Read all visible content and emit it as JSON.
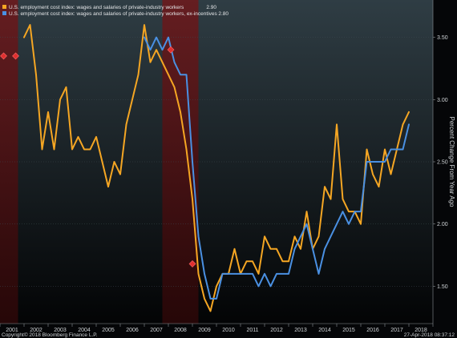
{
  "chart_data": {
    "type": "line",
    "ylabel": "Percent Change From Year Ago",
    "ylim": [
      1.2,
      3.8
    ],
    "xlim": [
      2001.0,
      2019.0
    ],
    "y_ticks": [
      "1.50",
      "2.00",
      "2.50",
      "3.00",
      "3.50"
    ],
    "x_ticks": [
      "2001",
      "2002",
      "2003",
      "2004",
      "2005",
      "2006",
      "2007",
      "2008",
      "2009",
      "2010",
      "2011",
      "2012",
      "2013",
      "2014",
      "2015",
      "2016",
      "2017",
      "2018"
    ],
    "recessions": [
      [
        2001.0,
        2001.75
      ],
      [
        2007.75,
        2009.25
      ]
    ],
    "series": [
      {
        "name": "U.S. employment cost index: wages and salaries of private-industry workers",
        "last_value": "2.90",
        "color": "#f5a623",
        "x": [
          2002.0,
          2002.25,
          2002.5,
          2002.75,
          2003.0,
          2003.25,
          2003.5,
          2003.75,
          2004.0,
          2004.25,
          2004.5,
          2004.75,
          2005.0,
          2005.25,
          2005.5,
          2005.75,
          2006.0,
          2006.25,
          2006.5,
          2006.75,
          2007.0,
          2007.25,
          2007.5,
          2007.75,
          2008.0,
          2008.25,
          2008.5,
          2008.75,
          2009.0,
          2009.25,
          2009.5,
          2009.75,
          2010.0,
          2010.25,
          2010.5,
          2010.75,
          2011.0,
          2011.25,
          2011.5,
          2011.75,
          2012.0,
          2012.25,
          2012.5,
          2012.75,
          2013.0,
          2013.25,
          2013.5,
          2013.75,
          2014.0,
          2014.25,
          2014.5,
          2014.75,
          2015.0,
          2015.25,
          2015.5,
          2015.75,
          2016.0,
          2016.25,
          2016.5,
          2016.75,
          2017.0,
          2017.25,
          2017.5,
          2017.75,
          2018.0
        ],
        "values": [
          3.5,
          3.6,
          3.2,
          2.6,
          2.9,
          2.6,
          3.0,
          3.1,
          2.6,
          2.7,
          2.6,
          2.6,
          2.7,
          2.5,
          2.3,
          2.5,
          2.4,
          2.8,
          3.0,
          3.2,
          3.6,
          3.3,
          3.4,
          3.3,
          3.2,
          3.1,
          2.9,
          2.6,
          2.2,
          1.6,
          1.4,
          1.3,
          1.5,
          1.6,
          1.6,
          1.8,
          1.6,
          1.7,
          1.7,
          1.6,
          1.9,
          1.8,
          1.8,
          1.7,
          1.7,
          1.9,
          1.8,
          2.1,
          1.8,
          1.9,
          2.3,
          2.2,
          2.8,
          2.2,
          2.1,
          2.1,
          2.0,
          2.6,
          2.4,
          2.3,
          2.6,
          2.4,
          2.6,
          2.8,
          2.9
        ]
      },
      {
        "name": "U.S. employment cost index: wages and salaries of private-industry workers, ex-incentives",
        "last_value": "2.80",
        "color": "#4a90e2",
        "x": [
          2007.0,
          2007.25,
          2007.5,
          2007.75,
          2008.0,
          2008.25,
          2008.5,
          2008.75,
          2009.0,
          2009.25,
          2009.5,
          2009.75,
          2010.0,
          2010.25,
          2010.5,
          2010.75,
          2011.0,
          2011.25,
          2011.5,
          2011.75,
          2012.0,
          2012.25,
          2012.5,
          2012.75,
          2013.0,
          2013.25,
          2013.5,
          2013.75,
          2014.0,
          2014.25,
          2014.5,
          2014.75,
          2015.0,
          2015.25,
          2015.5,
          2015.75,
          2016.0,
          2016.25,
          2016.5,
          2016.75,
          2017.0,
          2017.25,
          2017.5,
          2017.75,
          2018.0
        ],
        "values": [
          3.5,
          3.4,
          3.5,
          3.4,
          3.5,
          3.3,
          3.2,
          3.2,
          2.5,
          1.9,
          1.6,
          1.4,
          1.4,
          1.6,
          1.6,
          1.6,
          1.6,
          1.6,
          1.6,
          1.5,
          1.6,
          1.5,
          1.6,
          1.6,
          1.6,
          1.8,
          1.9,
          2.0,
          1.8,
          1.6,
          1.8,
          1.9,
          2.0,
          2.1,
          2.0,
          2.1,
          2.1,
          2.5,
          2.5,
          2.5,
          2.5,
          2.6,
          2.6,
          2.6,
          2.8
        ]
      }
    ]
  },
  "footer": {
    "copyright": "Copyright© 2018 Bloomberg Finance L.P.",
    "timestamp": "27-Apr-2018 08:37:12"
  }
}
